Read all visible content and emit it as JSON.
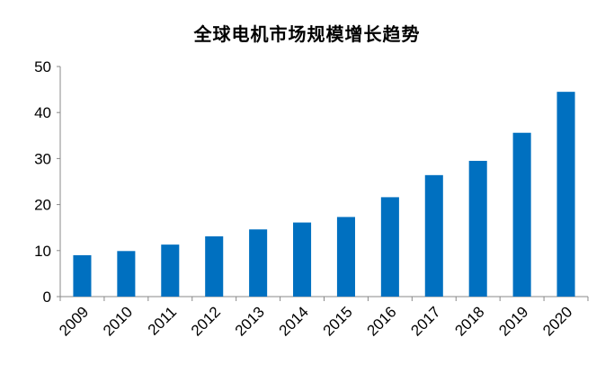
{
  "chart_data": {
    "type": "bar",
    "title": "全球电机市场规模增长趋势",
    "xlabel": "",
    "ylabel": "",
    "categories": [
      "2009",
      "2010",
      "2011",
      "2012",
      "2013",
      "2014",
      "2015",
      "2016",
      "2017",
      "2018",
      "2019",
      "2020"
    ],
    "values": [
      9.0,
      9.9,
      11.3,
      13.1,
      14.6,
      16.1,
      17.3,
      21.6,
      26.4,
      29.5,
      35.6,
      44.5
    ],
    "ylim": [
      0,
      50
    ],
    "yticks": [
      "0",
      "10",
      "20",
      "30",
      "40",
      "50"
    ],
    "grid": false,
    "legend": "none",
    "bar_color": "#0070C0"
  }
}
